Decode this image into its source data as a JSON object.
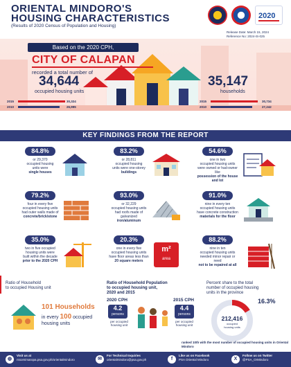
{
  "header": {
    "title_line1": "ORIENTAL MINDORO'S",
    "title_line2": "HOUSING CHARACTERISTICS",
    "subtitle": "(Results of 2020 Census of Population and Housing)",
    "release_date": "Release Date: March 15, 2024",
    "reference_no": "Reference No: 2024-IS-025"
  },
  "hero": {
    "based_on": "Based on the 2020 CPH,",
    "city": "CITY OF CALAPAN",
    "recorded": "recorded a total number of",
    "housing_units_value": "34,644",
    "housing_units_label": "occupied housing units",
    "households_value": "35,147",
    "households_label": "households",
    "left_bars": [
      {
        "year": "2015",
        "value": "30,324"
      },
      {
        "year": "2010",
        "value": "26,995"
      }
    ],
    "right_bars": [
      {
        "year": "2015",
        "value": "30,734"
      },
      {
        "year": "2010",
        "value": "27,242"
      }
    ]
  },
  "key_findings": {
    "title": "KEY FINDINGS FROM THE REPORT",
    "items": [
      {
        "pct": "84.8%",
        "line1": "or 29,370",
        "line2": "occupied housing",
        "line3": "units were",
        "line4": "single houses"
      },
      {
        "pct": "83.2%",
        "line1": "or 28,811",
        "line2": "occupied housing",
        "line3": "units were one-storey",
        "line4": "buildings"
      },
      {
        "pct": "54.6%",
        "line1": "one in two",
        "line2": "occupied housing units",
        "line3": "were owned or had-owner like",
        "line4": "possession of the house and lot"
      },
      {
        "pct": "79.2%",
        "line1": "four in every five",
        "line2": "occupied housing units",
        "line3": "had outer walls made of",
        "line4": "concrete/brick/stone"
      },
      {
        "pct": "93.0%",
        "line1": "or 32,229",
        "line2": "occupied housing units",
        "line3": "had roofs made of galvanized",
        "line4": "iron/aluminum"
      },
      {
        "pct": "91.0%",
        "line1": "nine in every ten",
        "line2": "occupied housing units",
        "line3": "have concrete construction",
        "line4": "materials for the floor"
      },
      {
        "pct": "35.0%",
        "line1": "two in five occupied",
        "line2": "housing units were",
        "line3": "built within the decade",
        "line4": "prior to the 2020 CPH"
      },
      {
        "pct": "20.3%",
        "line1": "one in every five",
        "line2": "occupied housing units",
        "line3": "have floor areas less than",
        "line4": "20 square meters"
      },
      {
        "pct": "88.2%",
        "line1": "nine in ten",
        "line2": "occupied housing units",
        "line3": "needed minor repair or need",
        "line4": "not to be repaired at all"
      }
    ],
    "m2_label": "m²",
    "m2_sub": "area"
  },
  "bottom": {
    "ratio_household_title1": "Ratio of Household",
    "ratio_household_title2": "to occupied Housing unit",
    "households_count": "101 Households",
    "in_every": "in every",
    "units_count": "100",
    "occupied": "occupied",
    "housing_units": "housing units",
    "ratio_pop_title1": "Ratio of Household Population",
    "ratio_pop_title2": "to occupied housing unit,",
    "ratio_pop_title3": "2020 and 2015",
    "cph2020": "2020 CPH",
    "cph2020_val": "4.2",
    "cph2015": "2015 CPH",
    "cph2015_val": "4.4",
    "persons": "persons",
    "per_unit": "per occupied housing unit",
    "share_title1": "Percent share to the total",
    "share_title2": "number of occupied housing",
    "share_title3": "units in the province",
    "share_pct": "16.3%",
    "share_val": "212,416",
    "share_lbl1": "occupied",
    "share_lbl2": "housing units",
    "ranked": "ranked 10th with the most number of occupied housing units in Oriental Mindoro"
  },
  "footer": {
    "visit_label": "Visit us at",
    "visit_val": "rssomimaropa.psa.gov.ph/orientalmindoro",
    "tech_label": "For Technical Inquiries",
    "tech_val": "orientalmindoro@psa.gov.ph",
    "fb_label": "Like us on Facebook",
    "fb_val": "PSA Oriental Mindoro",
    "tw_label": "Follow us on Twitter",
    "tw_val": "@PSA_OrMindoro"
  },
  "colors": {
    "navy": "#1d2b5b",
    "band": "#2e3a77",
    "red": "#d71f26",
    "pink": "#fde1dc"
  }
}
